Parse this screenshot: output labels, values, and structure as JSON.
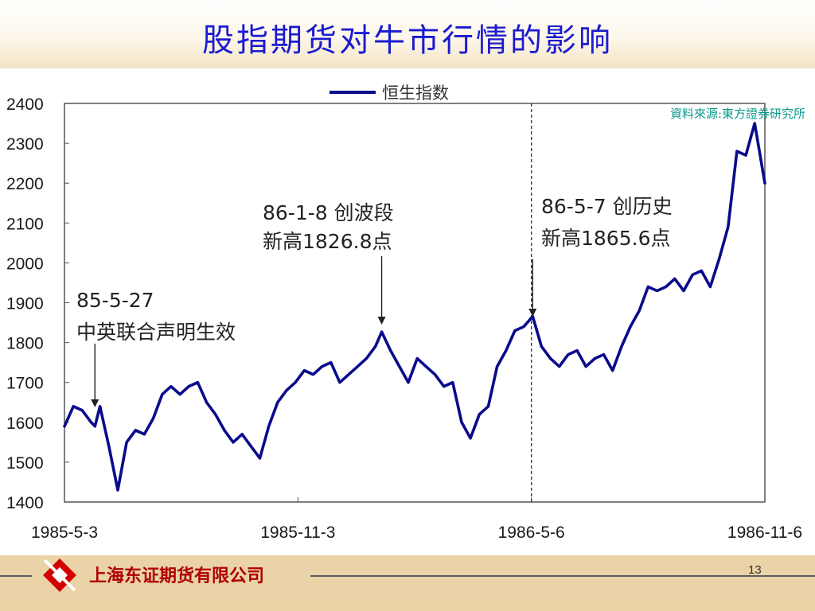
{
  "slide": {
    "title": "股指期货对牛市行情的影响",
    "source": "資料來源:東方證券研究所",
    "company": "上海东证期货有限公司",
    "page_number": "13"
  },
  "colors": {
    "title": "#1b1bd1",
    "series": "#0a0a8c",
    "source": "#0a9a8a",
    "logo": "#d40000"
  },
  "icons": {
    "logo": "company-logo-icon"
  },
  "chart_data": {
    "type": "line",
    "title": "",
    "xlabel": "",
    "ylabel": "",
    "ylim": [
      1400,
      2400
    ],
    "yticks": [
      "2400",
      "2300",
      "2200",
      "2100",
      "2000",
      "1900",
      "1800",
      "1700",
      "1600",
      "1500",
      "1400"
    ],
    "xticks": [
      "1985-5-3",
      "1985-11-3",
      "1986-5-6",
      "1986-11-6"
    ],
    "legend": {
      "position": "top-center"
    },
    "grid": false,
    "series": [
      {
        "name": "恒生指数",
        "x": [
          "1985-05-03",
          "1985-05-10",
          "1985-05-17",
          "1985-05-24",
          "1985-05-27",
          "1985-05-31",
          "1985-06-07",
          "1985-06-14",
          "1985-06-21",
          "1985-06-28",
          "1985-07-05",
          "1985-07-12",
          "1985-07-19",
          "1985-07-26",
          "1985-08-02",
          "1985-08-09",
          "1985-08-16",
          "1985-08-23",
          "1985-08-30",
          "1985-09-06",
          "1985-09-13",
          "1985-09-20",
          "1985-09-27",
          "1985-10-04",
          "1985-10-11",
          "1985-10-18",
          "1985-10-25",
          "1985-11-01",
          "1985-11-08",
          "1985-11-15",
          "1985-11-22",
          "1985-11-29",
          "1985-12-06",
          "1985-12-13",
          "1985-12-20",
          "1985-12-27",
          "1986-01-03",
          "1986-01-08",
          "1986-01-15",
          "1986-01-22",
          "1986-01-29",
          "1986-02-05",
          "1986-02-12",
          "1986-02-19",
          "1986-02-26",
          "1986-03-05",
          "1986-03-12",
          "1986-03-19",
          "1986-03-26",
          "1986-04-02",
          "1986-04-09",
          "1986-04-16",
          "1986-04-23",
          "1986-04-30",
          "1986-05-07",
          "1986-05-14",
          "1986-05-21",
          "1986-05-28",
          "1986-06-04",
          "1986-06-11",
          "1986-06-18",
          "1986-06-25",
          "1986-07-02",
          "1986-07-09",
          "1986-07-16",
          "1986-07-23",
          "1986-07-30",
          "1986-08-06",
          "1986-08-13",
          "1986-08-20",
          "1986-08-27",
          "1986-09-03",
          "1986-09-10",
          "1986-09-17",
          "1986-09-24",
          "1986-10-01",
          "1986-10-08",
          "1986-10-15",
          "1986-10-22",
          "1986-10-29",
          "1986-11-06"
        ],
        "values": [
          1590,
          1640,
          1630,
          1600,
          1590,
          1640,
          1540,
          1430,
          1550,
          1580,
          1570,
          1610,
          1670,
          1690,
          1670,
          1690,
          1700,
          1650,
          1620,
          1580,
          1550,
          1570,
          1540,
          1510,
          1590,
          1650,
          1680,
          1700,
          1730,
          1720,
          1740,
          1750,
          1700,
          1720,
          1740,
          1760,
          1790,
          1826.8,
          1780,
          1740,
          1700,
          1760,
          1740,
          1720,
          1690,
          1700,
          1600,
          1560,
          1620,
          1640,
          1740,
          1780,
          1830,
          1840,
          1865.6,
          1790,
          1760,
          1740,
          1770,
          1780,
          1740,
          1760,
          1770,
          1730,
          1790,
          1840,
          1880,
          1940,
          1930,
          1940,
          1960,
          1930,
          1970,
          1980,
          1940,
          2010,
          2090,
          2280,
          2270,
          2350,
          2200
        ]
      }
    ],
    "annotations": [
      {
        "lines": [
          "85-5-27",
          "中英联合声明生效"
        ],
        "x": "1985-05-27"
      },
      {
        "lines": [
          "86-1-8 创波段",
          "新高1826.8点"
        ],
        "x": "1986-01-08"
      },
      {
        "lines": [
          "86-5-7 创历史",
          "新高1865.6点"
        ],
        "x": "1986-05-07"
      }
    ],
    "reference_line_x": "1986-05-06"
  }
}
